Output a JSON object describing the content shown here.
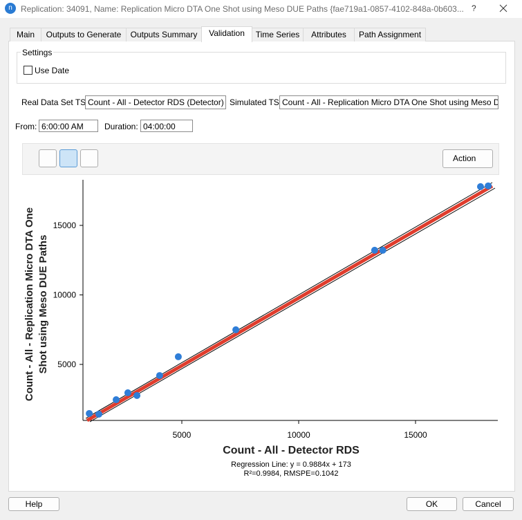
{
  "window": {
    "icon": "n",
    "title": "Replication: 34091, Name: Replication Micro DTA One Shot using Meso DUE Paths  {fae719a1-0857-4102-848a-0b603...",
    "help": "?"
  },
  "tabs": [
    "Main",
    "Outputs to Generate",
    "Outputs Summary",
    "Validation",
    "Time Series",
    "Attributes",
    "Path Assignment"
  ],
  "settings": {
    "title": "Settings",
    "use_date": "Use Date"
  },
  "real_ts": {
    "label": "Real Data Set TS:",
    "value": "Count - All - Detector RDS (Detector)"
  },
  "simulated_ts": {
    "label": "Simulated TS:",
    "value": "Count - All - Replication Micro DTA One Shot using Meso DUE P"
  },
  "from": {
    "label": "From:",
    "value": "6:00:00 AM"
  },
  "duration": {
    "label": "Duration:",
    "value": "04:00:00"
  },
  "action": "Action",
  "buttons": {
    "help": "Help",
    "ok": "OK",
    "cancel": "Cancel"
  },
  "chart_data": {
    "type": "scatter",
    "x_label": "Count - All - Detector RDS",
    "y_label_lines": [
      "Count - All - Replication Micro DTA One",
      "Shot using Meso DUE Paths"
    ],
    "annotations": [
      "Regression Line: y = 0.9884x + 173",
      "R²=0.9984, RMSPE=0.1042"
    ],
    "x": [
      1040,
      1450,
      2190,
      2690,
      3080,
      4050,
      4850,
      7310,
      13250,
      13600,
      17780,
      18110
    ],
    "y": [
      1470,
      1420,
      2460,
      2960,
      2760,
      4200,
      5550,
      7490,
      13210,
      13210,
      17790,
      17840
    ],
    "color": "#2f7ed8",
    "xlim": [
      770,
      18520
    ],
    "ylim": [
      970,
      18280
    ],
    "xticks": [
      5000,
      10000,
      15000
    ],
    "yticks": [
      5000,
      10000,
      15000
    ]
  }
}
